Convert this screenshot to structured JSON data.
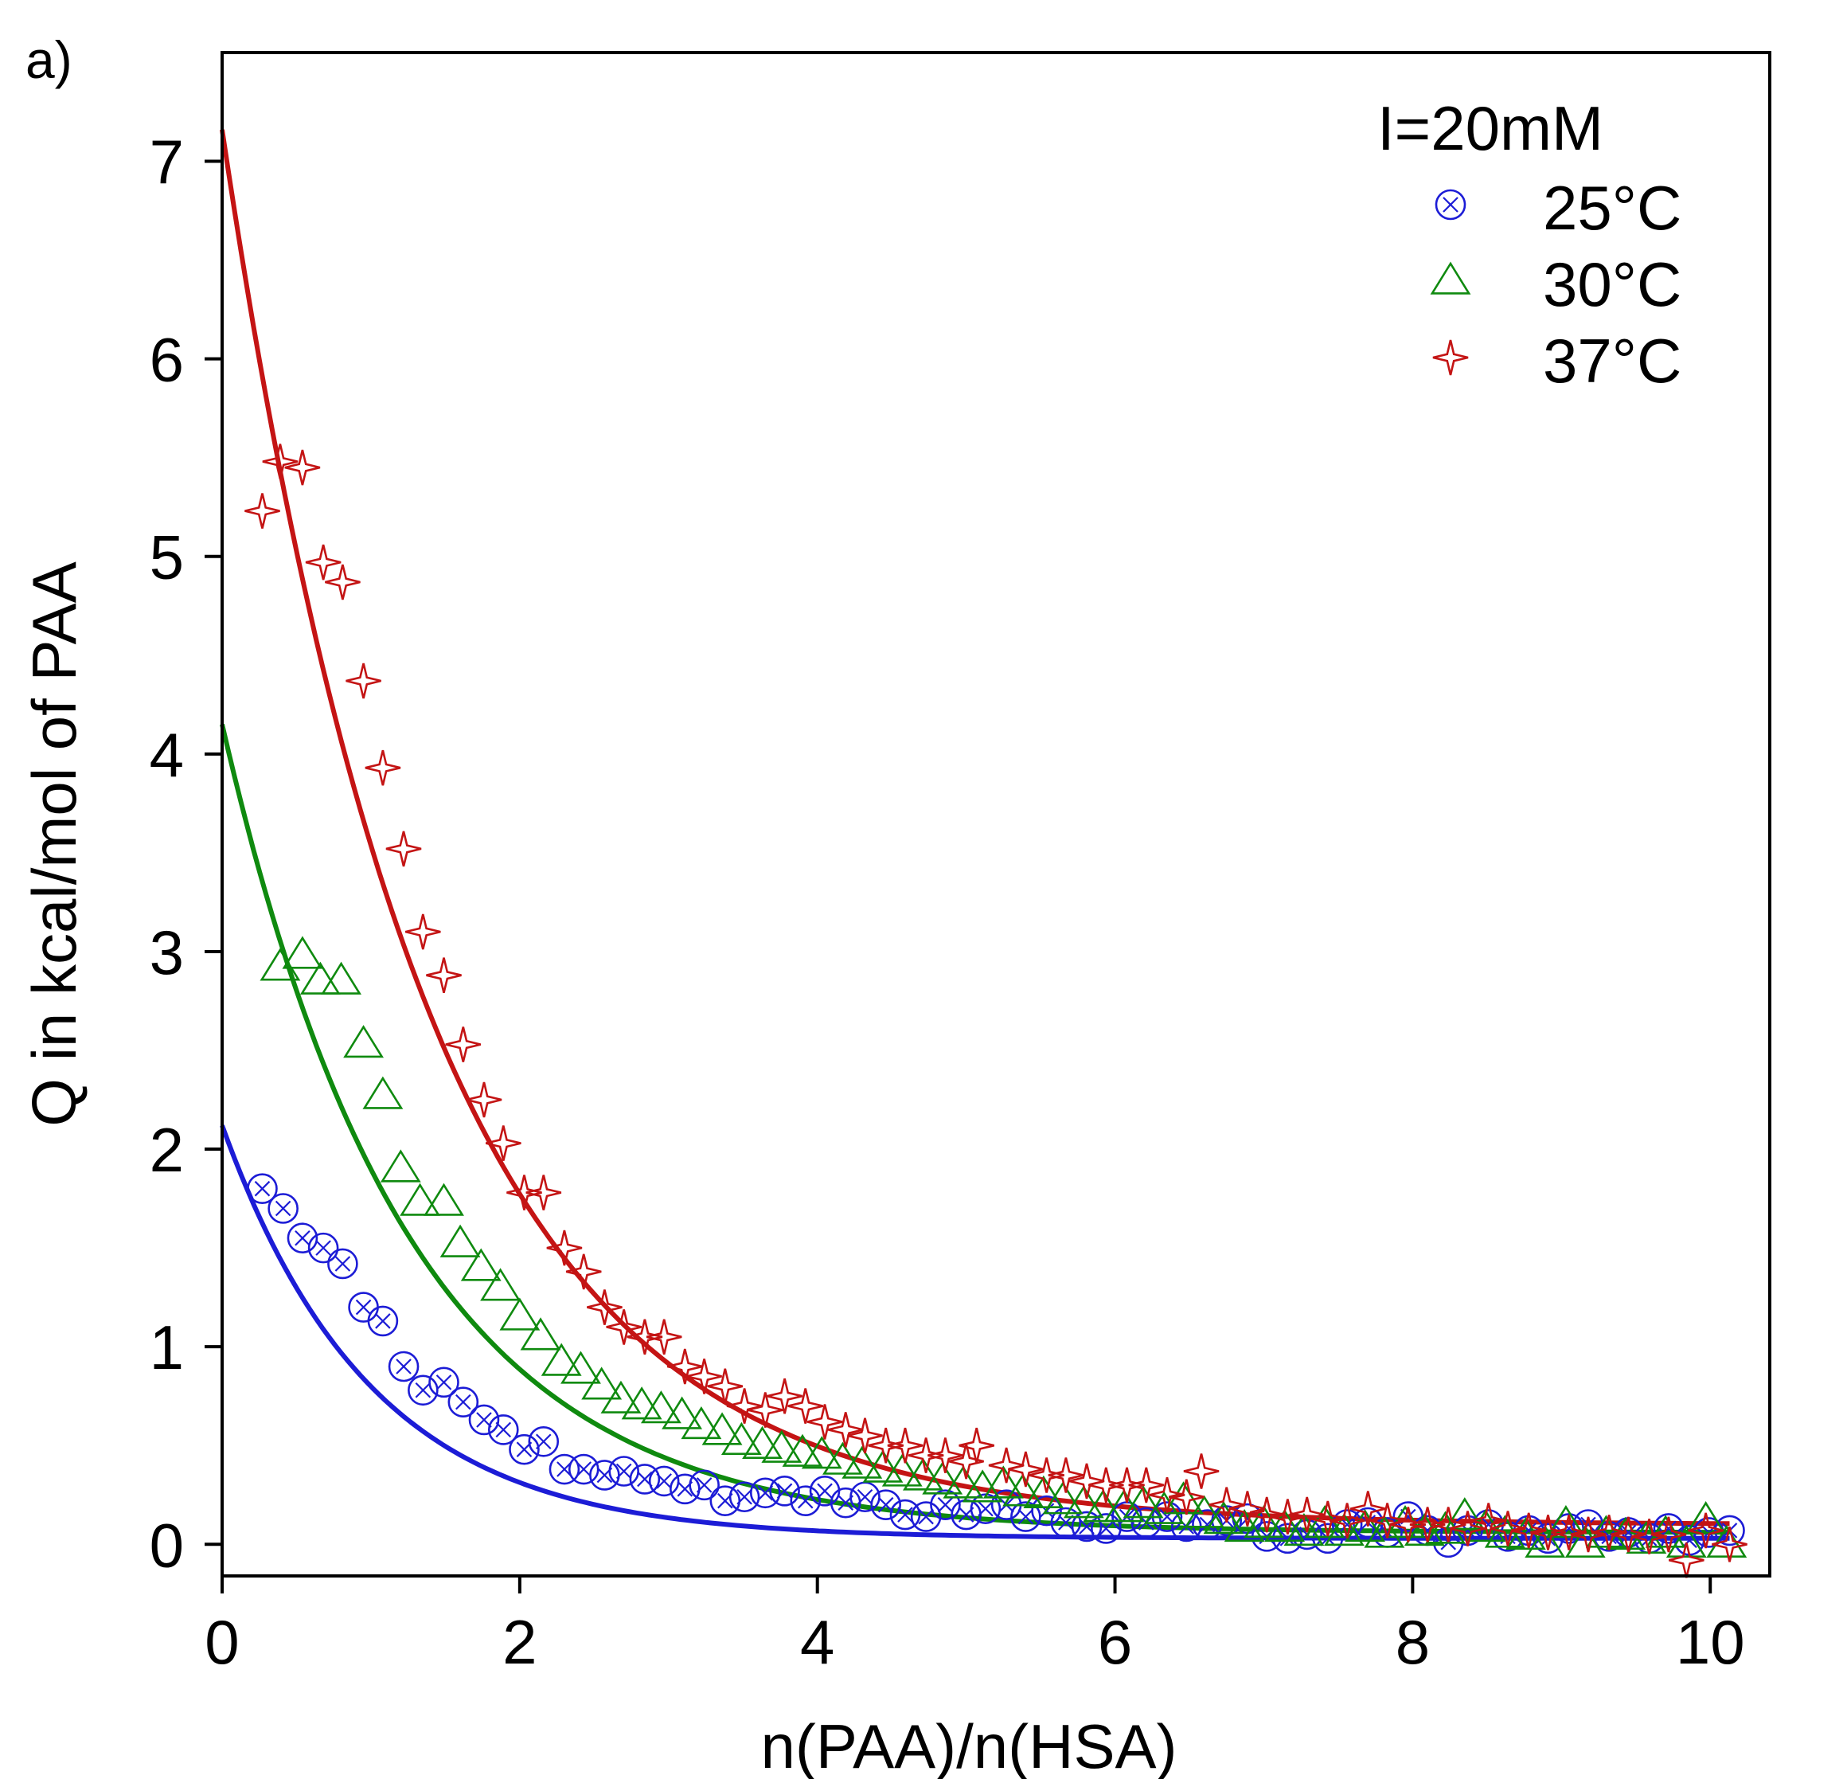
{
  "colors": {
    "series_25": "#1c1cd6",
    "series_30": "#0f8a0f",
    "series_37": "#c41414",
    "axis": "#000000"
  },
  "chart_data": {
    "type": "scatter",
    "panel_label": "a)",
    "title": "",
    "xlabel": "n(PAA)/n(HSA)",
    "ylabel": "Q in kcal/mol of PAA",
    "xlim": [
      0,
      10.4
    ],
    "ylim": [
      -0.16,
      7.55
    ],
    "xticks": [
      0,
      2,
      4,
      6,
      8,
      10
    ],
    "yticks": [
      0,
      1,
      2,
      3,
      4,
      5,
      6,
      7
    ],
    "grid": false,
    "legend_position": "top-right",
    "legend_title": "I=20mM",
    "series": [
      {
        "name": "25°C",
        "marker": "circle-x",
        "color": "#1c1cd6",
        "fit": {
          "model": "exponential",
          "q0": 2.12,
          "q_inf": 0.03,
          "k": 1.0
        },
        "x": [
          0.27,
          0.41,
          0.54,
          0.68,
          0.81,
          0.95,
          1.08,
          1.22,
          1.35,
          1.49,
          1.62,
          1.76,
          1.89,
          2.03,
          2.16,
          2.3,
          2.43,
          2.57,
          2.7,
          2.84,
          2.97,
          3.11,
          3.24,
          3.38,
          3.51,
          3.65,
          3.78,
          3.92,
          4.05,
          4.19,
          4.32,
          4.46,
          4.59,
          4.73,
          4.86,
          5.0,
          5.13,
          5.27,
          5.4,
          5.54,
          5.67,
          5.81,
          5.94,
          6.08,
          6.21,
          6.35,
          6.48,
          6.62,
          6.75,
          6.89,
          7.02,
          7.16,
          7.29,
          7.43,
          7.56,
          7.7,
          7.83,
          7.97,
          8.1,
          8.24,
          8.37,
          8.51,
          8.64,
          8.78,
          8.91,
          9.05,
          9.18,
          9.32,
          9.45,
          9.59,
          9.72,
          9.86,
          9.99,
          10.13
        ],
        "y": [
          1.8,
          1.7,
          1.55,
          1.5,
          1.42,
          1.2,
          1.13,
          0.9,
          0.78,
          0.82,
          0.72,
          0.63,
          0.58,
          0.48,
          0.52,
          0.38,
          0.38,
          0.35,
          0.37,
          0.33,
          0.32,
          0.28,
          0.3,
          0.22,
          0.24,
          0.26,
          0.27,
          0.22,
          0.27,
          0.21,
          0.24,
          0.2,
          0.15,
          0.14,
          0.2,
          0.15,
          0.18,
          0.2,
          0.14,
          0.17,
          0.11,
          0.09,
          0.08,
          0.14,
          0.11,
          0.14,
          0.09,
          0.1,
          0.12,
          0.13,
          0.04,
          0.03,
          0.05,
          0.03,
          0.1,
          0.11,
          0.06,
          0.14,
          0.07,
          0.01,
          0.07,
          0.1,
          0.04,
          0.07,
          0.03,
          0.08,
          0.1,
          0.04,
          0.06,
          0.03,
          0.08,
          0.02,
          0.06,
          0.07
        ]
      },
      {
        "name": "30°C",
        "marker": "triangle",
        "color": "#0f8a0f",
        "fit": {
          "model": "exponential",
          "q0": 4.15,
          "q_inf": 0.06,
          "k": 0.8
        },
        "x": [
          0.39,
          0.54,
          0.66,
          0.8,
          0.95,
          1.08,
          1.2,
          1.33,
          1.49,
          1.6,
          1.74,
          1.87,
          2.0,
          2.14,
          2.28,
          2.41,
          2.55,
          2.68,
          2.82,
          2.95,
          3.09,
          3.22,
          3.36,
          3.49,
          3.63,
          3.76,
          3.9,
          4.03,
          4.17,
          4.3,
          4.44,
          4.57,
          4.71,
          4.84,
          4.98,
          5.11,
          5.25,
          5.38,
          5.52,
          5.65,
          5.79,
          5.92,
          6.06,
          6.19,
          6.33,
          6.46,
          6.6,
          6.73,
          6.87,
          7.0,
          7.14,
          7.27,
          7.41,
          7.54,
          7.68,
          7.81,
          7.95,
          8.08,
          8.22,
          8.35,
          8.49,
          8.62,
          8.76,
          8.89,
          9.03,
          9.16,
          9.3,
          9.43,
          9.57,
          9.7,
          9.84,
          9.97,
          10.11
        ],
        "y": [
          2.92,
          2.98,
          2.85,
          2.85,
          2.53,
          2.27,
          1.9,
          1.73,
          1.73,
          1.52,
          1.4,
          1.3,
          1.15,
          1.05,
          0.92,
          0.88,
          0.8,
          0.73,
          0.7,
          0.68,
          0.65,
          0.6,
          0.57,
          0.52,
          0.5,
          0.48,
          0.46,
          0.45,
          0.42,
          0.4,
          0.38,
          0.36,
          0.34,
          0.32,
          0.3,
          0.28,
          0.3,
          0.26,
          0.25,
          0.22,
          0.2,
          0.18,
          0.18,
          0.2,
          0.17,
          0.22,
          0.15,
          0.12,
          0.08,
          0.1,
          0.08,
          0.06,
          0.1,
          0.06,
          0.08,
          0.05,
          0.1,
          0.06,
          0.07,
          0.14,
          0.08,
          0.05,
          0.04,
          0.0,
          0.1,
          0.0,
          0.05,
          0.04,
          0.02,
          0.05,
          0.0,
          0.12,
          0.0
        ]
      },
      {
        "name": "37°C",
        "marker": "star",
        "color": "#c41414",
        "fit": {
          "model": "exponential",
          "q0": 7.16,
          "q_inf": 0.1,
          "k": 0.72
        },
        "x": [
          0.27,
          0.39,
          0.54,
          0.68,
          0.81,
          0.95,
          1.08,
          1.22,
          1.35,
          1.49,
          1.62,
          1.76,
          1.89,
          2.03,
          2.16,
          2.3,
          2.43,
          2.57,
          2.7,
          2.84,
          2.97,
          3.11,
          3.24,
          3.38,
          3.51,
          3.65,
          3.78,
          3.92,
          4.05,
          4.19,
          4.32,
          4.46,
          4.59,
          4.73,
          4.86,
          5.0,
          5.07,
          5.27,
          5.4,
          5.54,
          5.67,
          5.81,
          5.94,
          6.08,
          6.21,
          6.35,
          6.48,
          6.58,
          6.75,
          6.89,
          7.02,
          7.16,
          7.29,
          7.43,
          7.56,
          7.7,
          7.83,
          7.97,
          8.1,
          8.24,
          8.37,
          8.51,
          8.64,
          8.78,
          8.91,
          9.05,
          9.18,
          9.32,
          9.45,
          9.59,
          9.72,
          9.84,
          9.97,
          10.13
        ],
        "y": [
          5.23,
          5.48,
          5.45,
          4.97,
          4.87,
          4.37,
          3.93,
          3.52,
          3.1,
          2.88,
          2.53,
          2.25,
          2.03,
          1.78,
          1.78,
          1.5,
          1.38,
          1.2,
          1.1,
          1.05,
          1.05,
          0.9,
          0.85,
          0.8,
          0.7,
          0.68,
          0.75,
          0.7,
          0.62,
          0.58,
          0.55,
          0.5,
          0.5,
          0.45,
          0.45,
          0.42,
          0.5,
          0.4,
          0.38,
          0.35,
          0.35,
          0.32,
          0.3,
          0.3,
          0.3,
          0.25,
          0.24,
          0.37,
          0.2,
          0.18,
          0.15,
          0.14,
          0.15,
          0.13,
          0.12,
          0.18,
          0.12,
          0.1,
          0.1,
          0.1,
          0.08,
          0.12,
          0.08,
          0.07,
          0.06,
          0.06,
          0.05,
          0.06,
          0.05,
          0.04,
          0.05,
          -0.08,
          0.07,
          0.0
        ]
      }
    ]
  }
}
